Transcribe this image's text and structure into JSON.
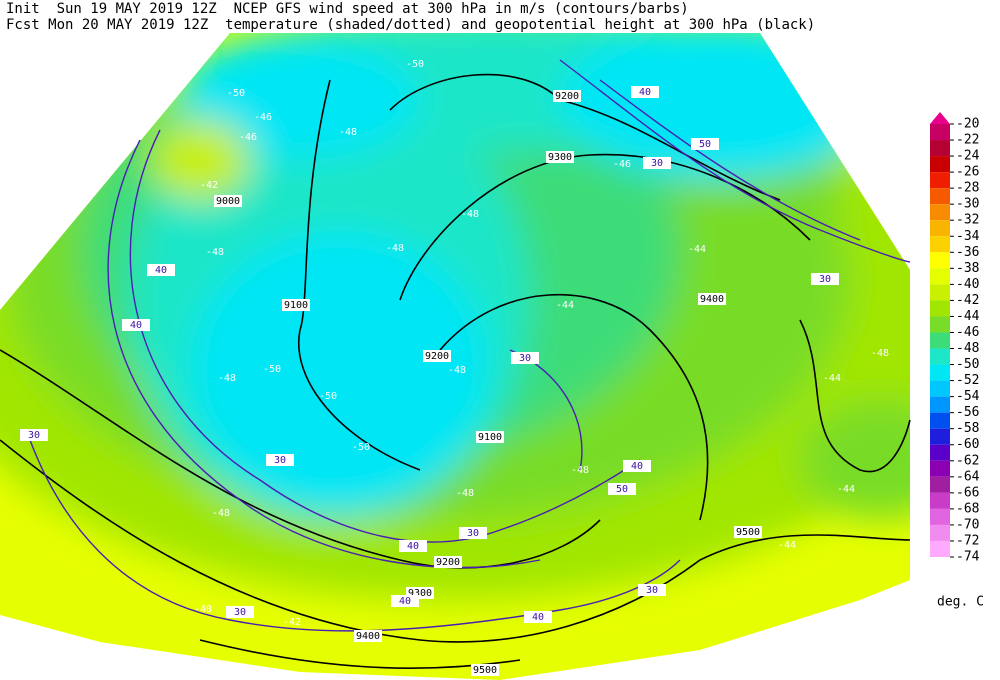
{
  "header": {
    "line1": "Init  Sun 19 MAY 2019 12Z  NCEP GFS wind speed at 300 hPa in m/s (contours/barbs)",
    "line2": "Fcst Mon 20 MAY 2019 12Z  temperature (shaded/dotted) and geopotential height at 300 hPa (black)"
  },
  "colorbar": {
    "levels": [
      -20,
      -22,
      -24,
      -26,
      -28,
      -30,
      -32,
      -34,
      -36,
      -38,
      -40,
      -42,
      -44,
      -46,
      -48,
      -50,
      -52,
      -54,
      -56,
      -58,
      -60,
      -62,
      -64,
      -66,
      -68,
      -70,
      -72,
      -74
    ],
    "arrow_color": "#e8008c",
    "colors": [
      "#c80064",
      "#b40032",
      "#c80000",
      "#f01e00",
      "#f55a00",
      "#f78c00",
      "#f9b400",
      "#fbd200",
      "#ffff00",
      "#e6ff00",
      "#c8f000",
      "#a0e600",
      "#78dc28",
      "#3cdc78",
      "#1ee6c8",
      "#00e6f5",
      "#00c8ff",
      "#0096ff",
      "#0050f0",
      "#1e1edc",
      "#5a00c8",
      "#8c00b4",
      "#a01ea0",
      "#c83cc8",
      "#e164e1",
      "#f08cf0",
      "#ffaaff"
    ],
    "unit": "deg. C"
  },
  "map_labels": {
    "height": [
      9200,
      9300,
      9000,
      9100,
      9400,
      9200,
      9100,
      9200,
      9300,
      9400,
      9500,
      9500
    ],
    "wind": [
      40,
      50,
      30,
      30,
      40,
      40,
      30,
      30,
      30,
      40,
      50,
      30,
      40,
      30,
      40,
      40,
      30
    ],
    "temperature": [
      -50,
      -50,
      -46,
      -48,
      -46,
      -42,
      -48,
      -48,
      -48,
      -46,
      -44,
      -44,
      -48,
      -50,
      -50,
      -50,
      -48,
      -48,
      -48,
      -48,
      -48,
      -44,
      -44,
      -42,
      -40,
      -44
    ]
  }
}
